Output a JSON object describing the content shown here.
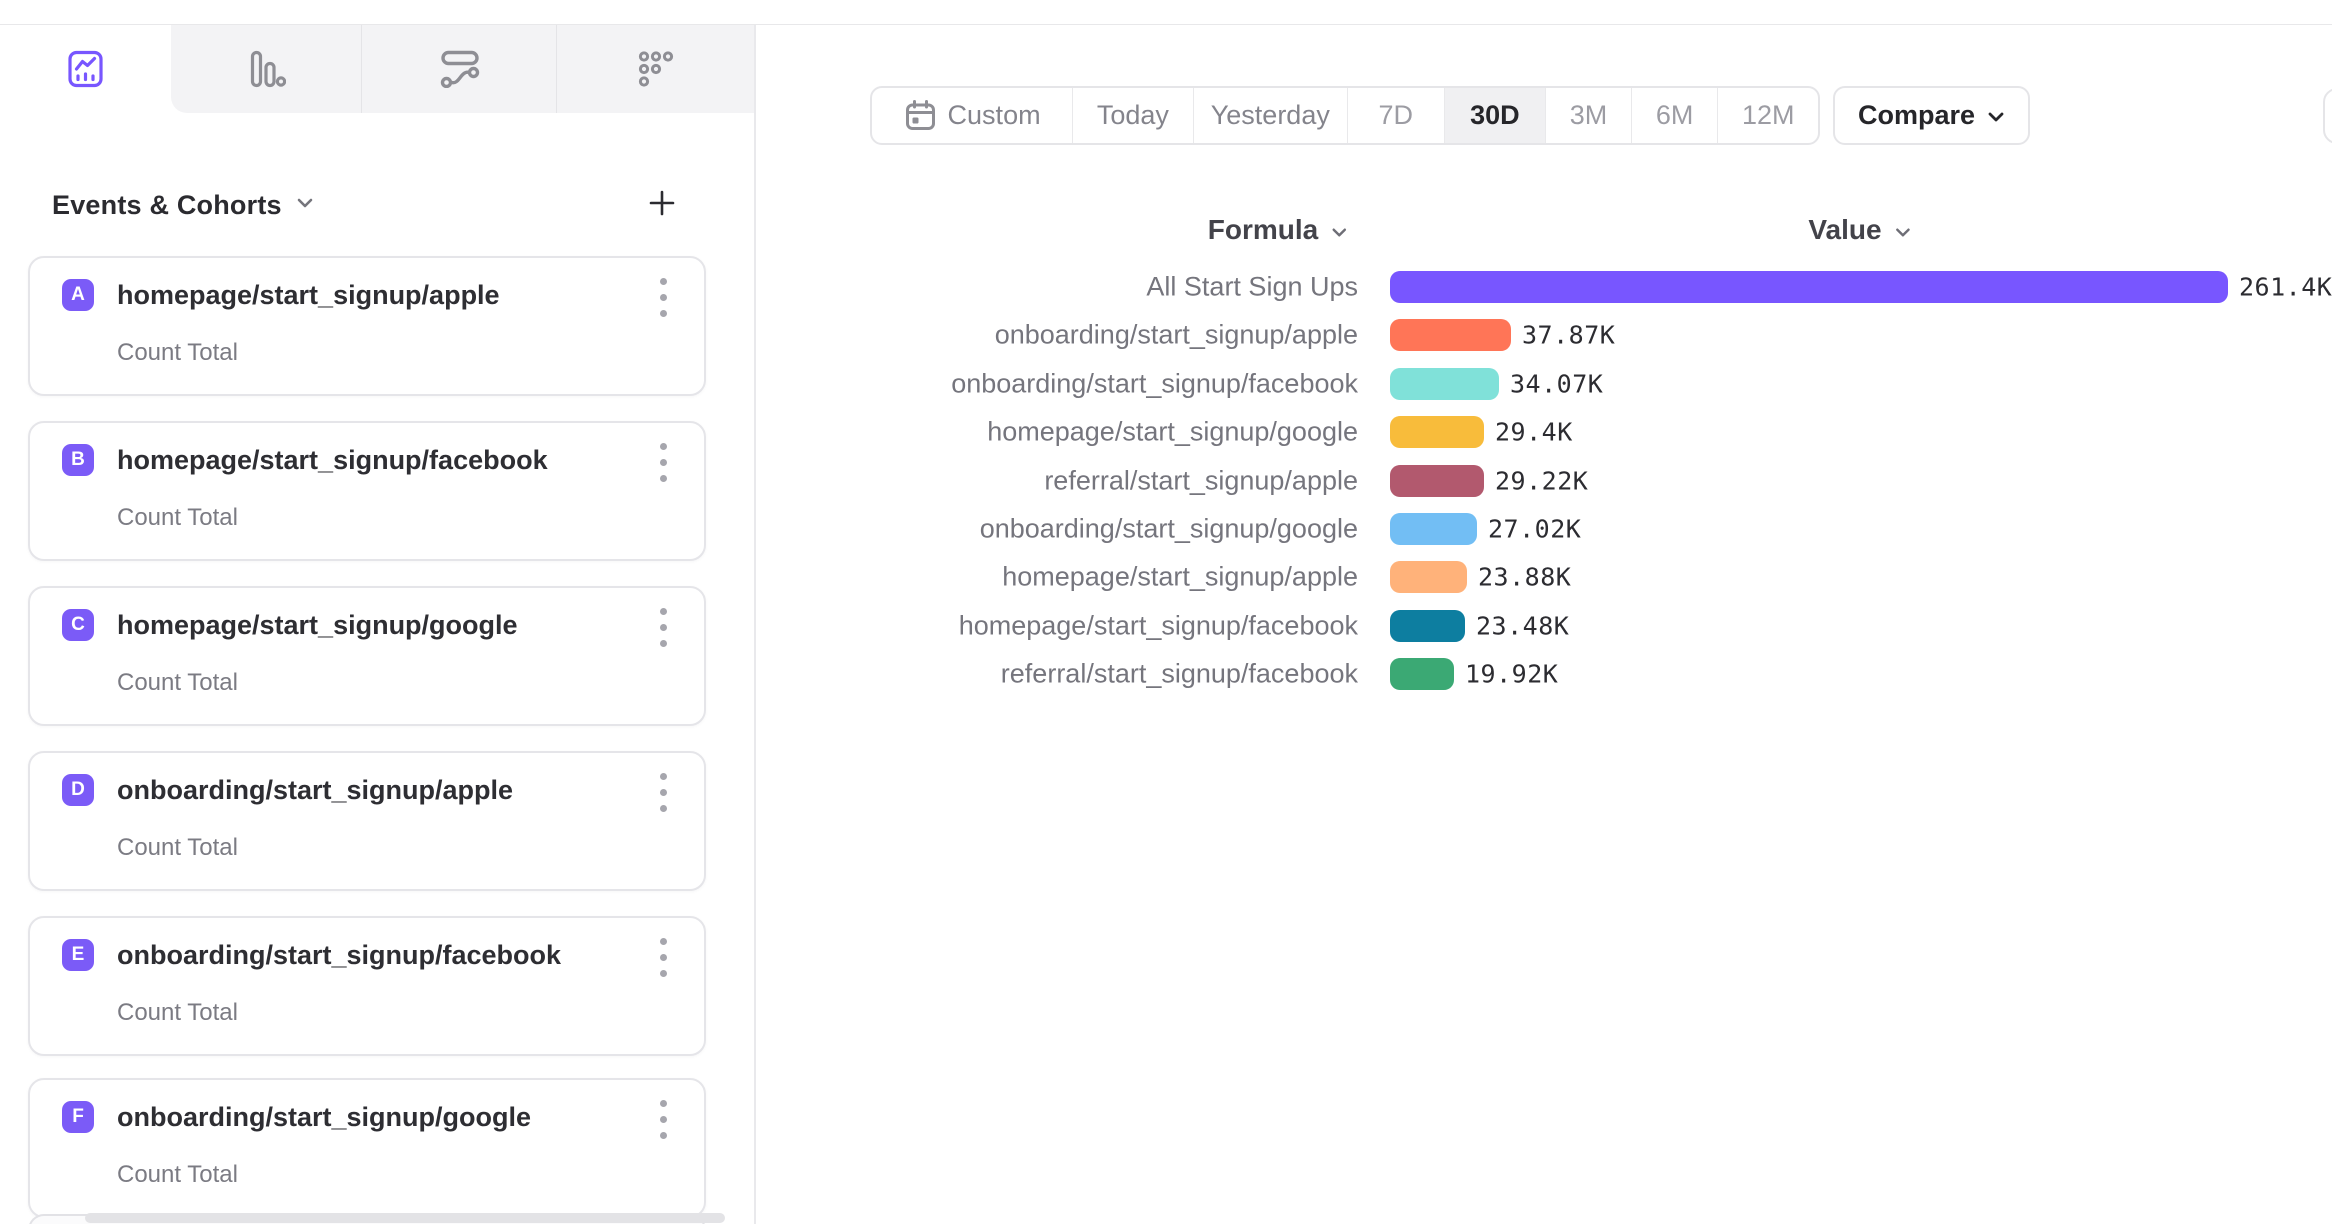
{
  "accent_color": "#7856FF",
  "view_tabs": [
    {
      "icon": "insights-icon",
      "selected": true
    },
    {
      "icon": "funnels-icon",
      "selected": false
    },
    {
      "icon": "flows-icon",
      "selected": false
    },
    {
      "icon": "retention-icon",
      "selected": false
    }
  ],
  "sidebar": {
    "title": "Events & Cohorts",
    "badge_color": "#7b5bf7",
    "events": [
      {
        "letter": "A",
        "name": "homepage/start_signup/apple",
        "metric": "Count Total"
      },
      {
        "letter": "B",
        "name": "homepage/start_signup/facebook",
        "metric": "Count Total"
      },
      {
        "letter": "C",
        "name": "homepage/start_signup/google",
        "metric": "Count Total"
      },
      {
        "letter": "D",
        "name": "onboarding/start_signup/apple",
        "metric": "Count Total"
      },
      {
        "letter": "E",
        "name": "onboarding/start_signup/facebook",
        "metric": "Count Total"
      },
      {
        "letter": "F",
        "name": "onboarding/start_signup/google",
        "metric": "Count Total"
      }
    ]
  },
  "toolbar": {
    "date_ranges": [
      "Custom",
      "Today",
      "Yesterday",
      "7D",
      "30D",
      "3M",
      "6M",
      "12M"
    ],
    "selected_range": "30D",
    "custom_has_calendar_icon": true,
    "compare_label": "Compare"
  },
  "chart": {
    "formula_header": "Formula",
    "value_header": "Value",
    "chart_data": {
      "type": "bar",
      "orientation": "horizontal",
      "max_value": 261400,
      "rows": [
        {
          "label": "All Start Sign Ups",
          "value": 261400,
          "display": "261.4K",
          "color": "#7856FF"
        },
        {
          "label": "onboarding/start_signup/apple",
          "value": 37870,
          "display": "37.87K",
          "color": "#FF7557"
        },
        {
          "label": "onboarding/start_signup/facebook",
          "value": 34070,
          "display": "34.07K",
          "color": "#80E1D9"
        },
        {
          "label": "homepage/start_signup/google",
          "value": 29400,
          "display": "29.4K",
          "color": "#F8BC3B"
        },
        {
          "label": "referral/start_signup/apple",
          "value": 29220,
          "display": "29.22K",
          "color": "#B2596E"
        },
        {
          "label": "onboarding/start_signup/google",
          "value": 27020,
          "display": "27.02K",
          "color": "#72BEF4"
        },
        {
          "label": "homepage/start_signup/apple",
          "value": 23880,
          "display": "23.88K",
          "color": "#FFB27A"
        },
        {
          "label": "homepage/start_signup/facebook",
          "value": 23480,
          "display": "23.48K",
          "color": "#0D7EA0"
        },
        {
          "label": "referral/start_signup/facebook",
          "value": 19920,
          "display": "19.92K",
          "color": "#3BA974"
        }
      ]
    }
  }
}
